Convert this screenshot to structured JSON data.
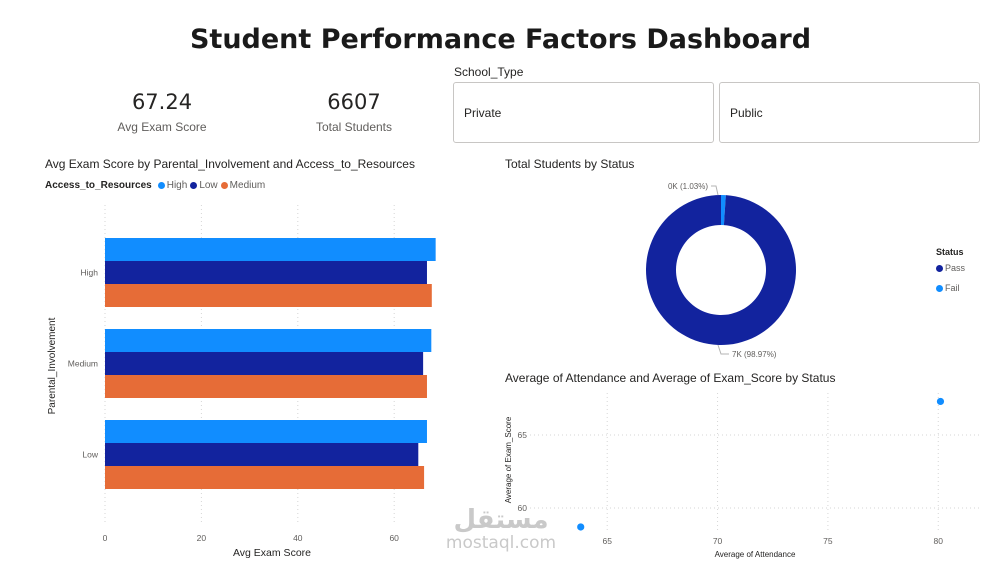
{
  "dashboard": {
    "title": "Student Performance Factors Dashboard"
  },
  "kpis": [
    {
      "value": "67.24",
      "label": "Avg Exam Score"
    },
    {
      "value": "6607",
      "label": "Total Students"
    }
  ],
  "slicer": {
    "title": "School_Type",
    "options": [
      "Private",
      "Public"
    ]
  },
  "colors": {
    "high": "#118DFF",
    "low": "#12239E",
    "medium": "#E66C37",
    "pass": "#12239E",
    "fail": "#118DFF"
  },
  "watermark": {
    "arabic": "مستقل",
    "latin": "mostaql.com"
  },
  "chart_data": [
    {
      "type": "bar",
      "orientation": "horizontal",
      "title": "Avg Exam Score by Parental_Involvement and Access_to_Resources",
      "legend_title": "Access_to_Resources",
      "categories": [
        "High",
        "Medium",
        "Low"
      ],
      "series": [
        {
          "name": "High",
          "color_key": "high",
          "values": [
            68.6,
            67.7,
            66.8
          ]
        },
        {
          "name": "Low",
          "color_key": "low",
          "values": [
            66.8,
            66.0,
            65.0
          ]
        },
        {
          "name": "Medium",
          "color_key": "medium",
          "values": [
            67.8,
            66.8,
            66.2
          ]
        }
      ],
      "xlabel": "Avg Exam Score",
      "ylabel": "Parental_Involvement",
      "xlim": [
        0,
        70
      ],
      "xticks": [
        0,
        20,
        40,
        60
      ]
    },
    {
      "type": "pie",
      "subtype": "donut",
      "title": "Total Students by Status",
      "legend_title": "Status",
      "slices": [
        {
          "name": "Pass",
          "color_key": "pass",
          "percent": 98.97,
          "label": "7K (98.97%)"
        },
        {
          "name": "Fail",
          "color_key": "fail",
          "percent": 1.03,
          "label": "0K (1.03%)"
        }
      ]
    },
    {
      "type": "scatter",
      "title": "Average of Attendance and Average of Exam_Score by Status",
      "xlabel": "Average of Attendance",
      "ylabel": "Average of Exam_Score",
      "xlim": [
        60,
        82.5
      ],
      "ylim": [
        58.5,
        67.5
      ],
      "xticks": [
        65,
        70,
        75,
        80
      ],
      "yticks": [
        60,
        65
      ],
      "points": [
        {
          "status": "Pass",
          "x": 80.1,
          "y": 67.3,
          "color_key": "fail"
        },
        {
          "status": "Fail",
          "x": 63.8,
          "y": 58.7,
          "color_key": "fail"
        }
      ]
    }
  ]
}
